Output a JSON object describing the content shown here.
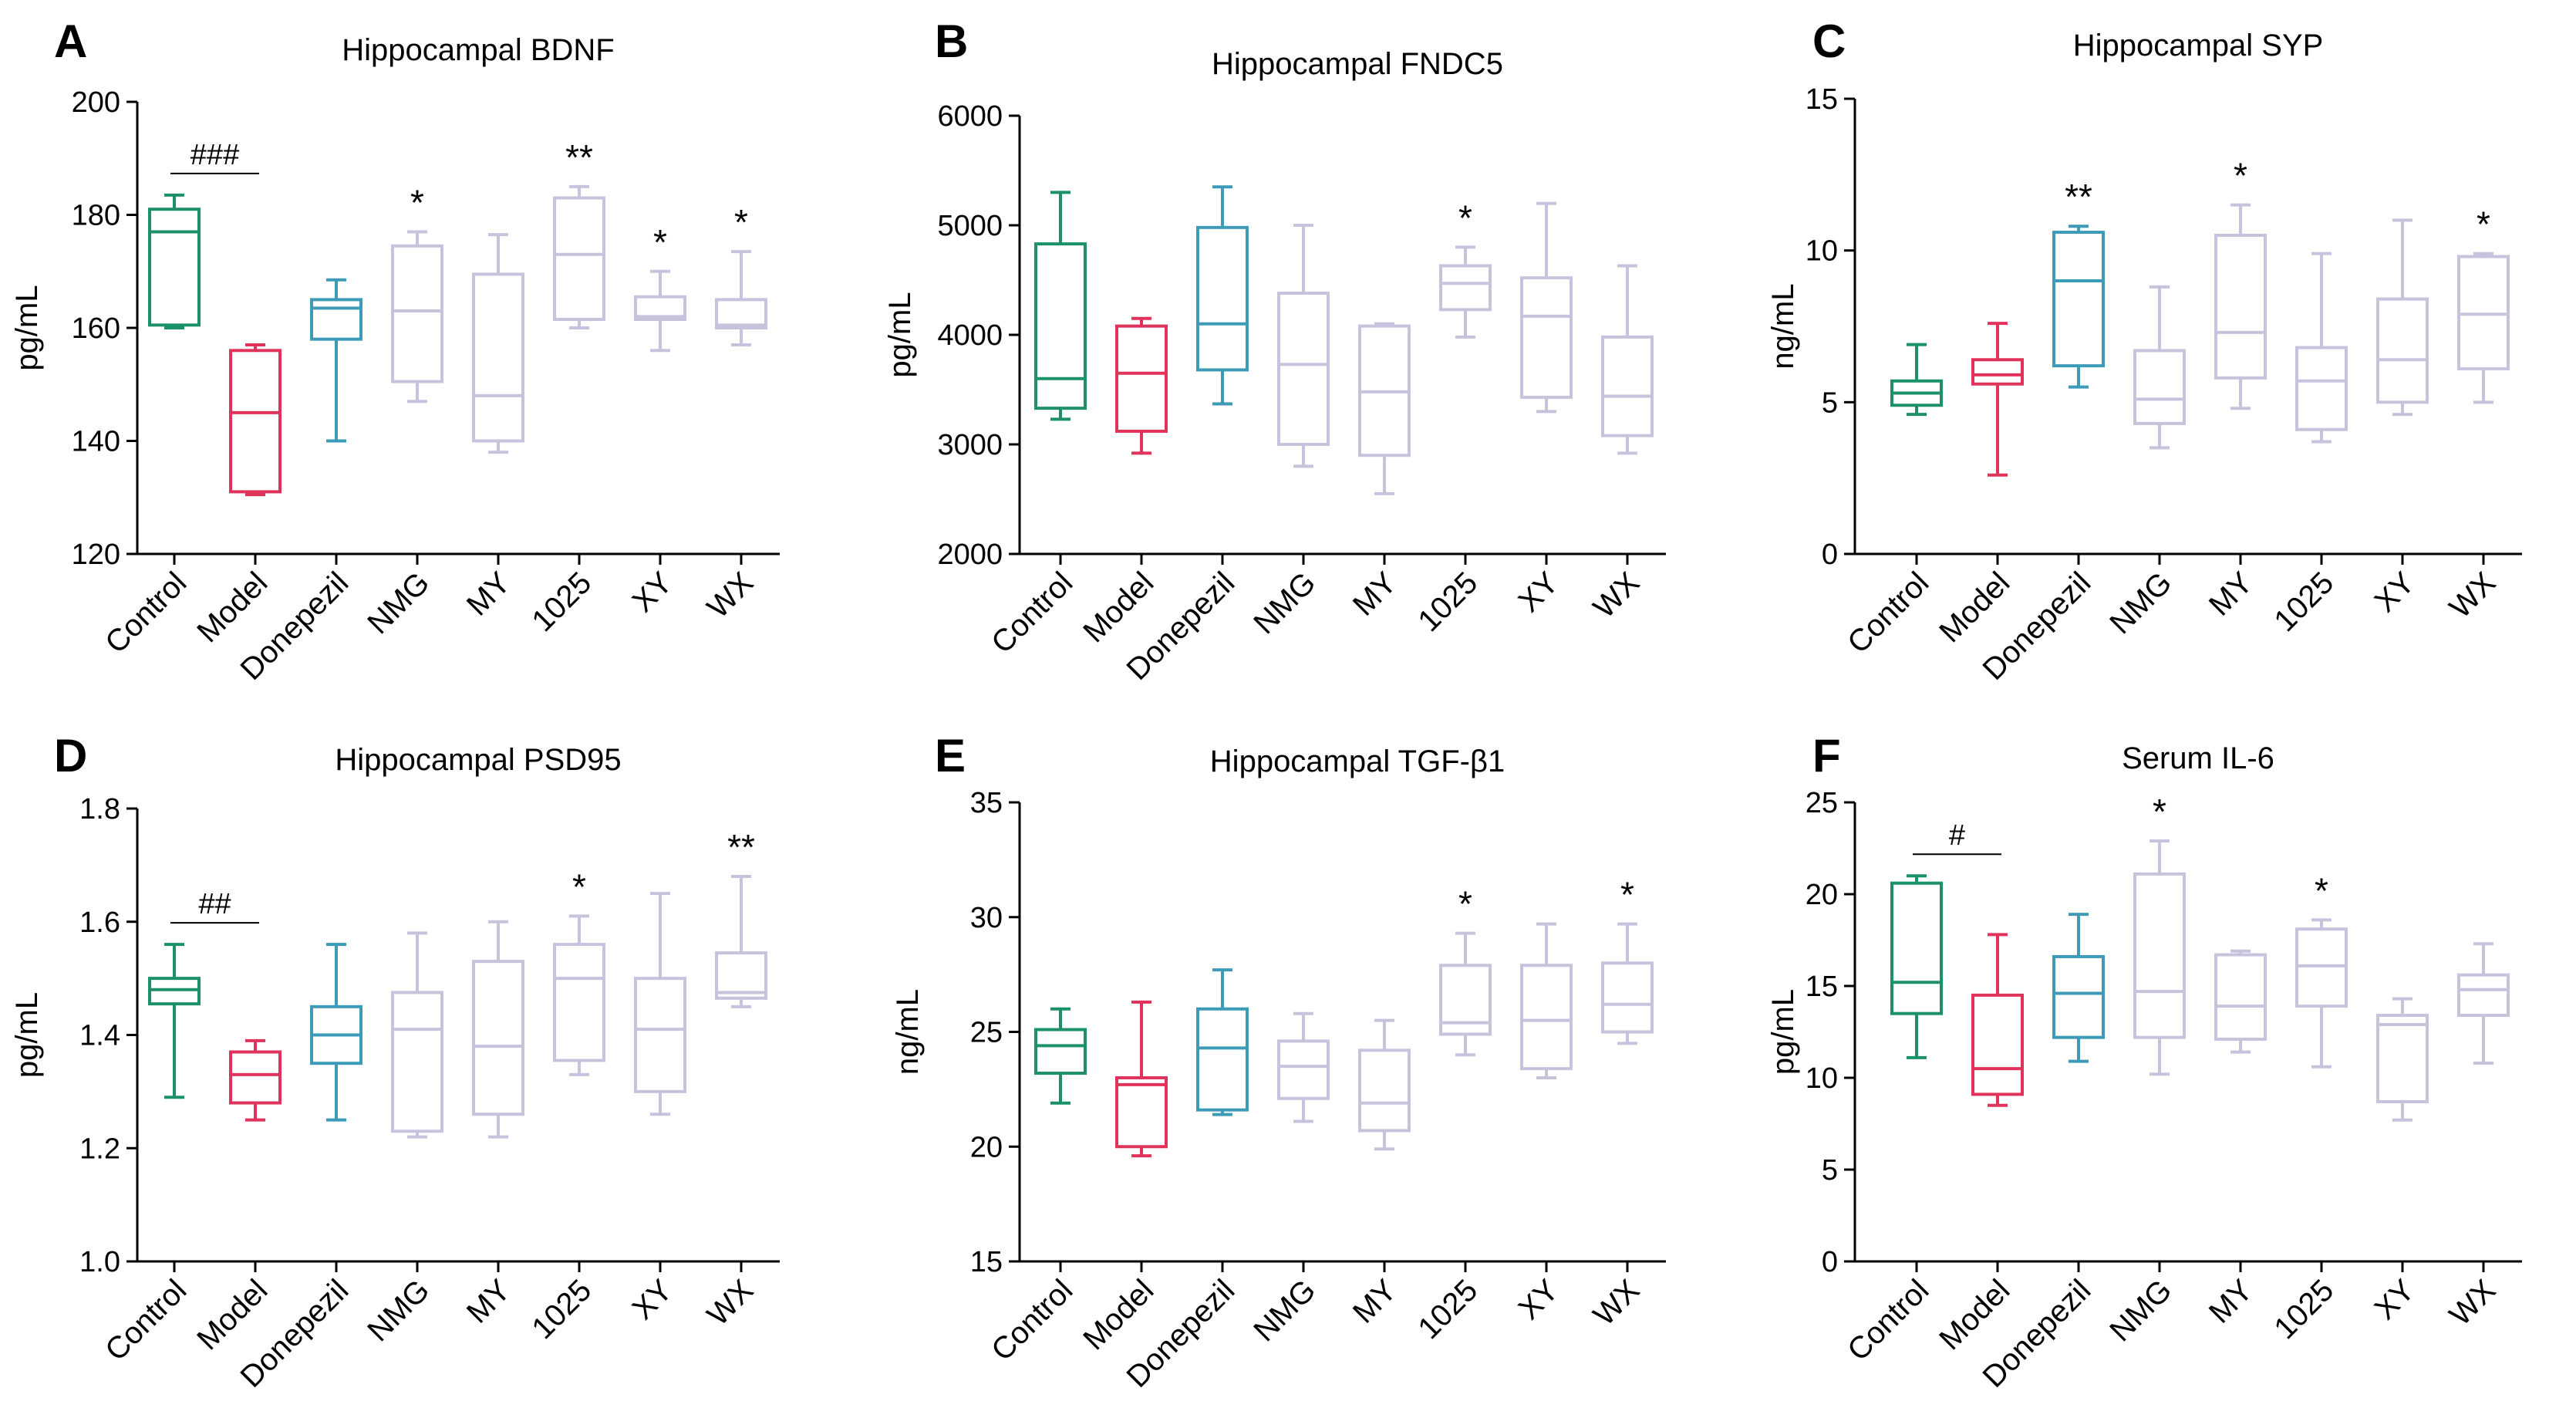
{
  "figure_colors": {
    "Control": "#1a9168",
    "Model": "#e0335c",
    "Donepezil": "#3d9bb8",
    "others": "#c8c2dd"
  },
  "chart_data": [
    {
      "type": "box",
      "panel": "A",
      "title": "Hippocampal BDNF",
      "ylabel": "pg/mL",
      "ylim": [
        120,
        200
      ],
      "yticks": [
        "120",
        "140",
        "160",
        "180",
        "200"
      ],
      "categories": [
        "Control",
        "Model",
        "Donepezil",
        "NMG",
        "MY",
        "1025",
        "XY",
        "WX"
      ],
      "boxes": [
        {
          "min": 160,
          "q1": 160.5,
          "median": 177,
          "q3": 181,
          "max": 183.5
        },
        {
          "min": 130.5,
          "q1": 131,
          "median": 145,
          "q3": 156,
          "max": 157
        },
        {
          "min": 140,
          "q1": 158,
          "median": 163.5,
          "q3": 165,
          "max": 168.5
        },
        {
          "min": 147,
          "q1": 150.5,
          "median": 163,
          "q3": 174.5,
          "max": 177
        },
        {
          "min": 138,
          "q1": 140,
          "median": 148,
          "q3": 169.5,
          "max": 176.5
        },
        {
          "min": 160,
          "q1": 161.5,
          "median": 173,
          "q3": 183,
          "max": 185
        },
        {
          "min": 156,
          "q1": 161.5,
          "median": 162,
          "q3": 165.5,
          "max": 170
        },
        {
          "min": 157,
          "q1": 160,
          "median": 160.5,
          "q3": 165,
          "max": 173.5
        }
      ],
      "significance": {
        "NMG": "*",
        "1025": "**",
        "XY": "*",
        "WX": "*"
      },
      "hash_marks": {
        "label": "###",
        "from": "Control",
        "to": "Model"
      }
    },
    {
      "type": "box",
      "panel": "B",
      "title": "Hippocampal FNDC5",
      "ylabel": "pg/mL",
      "ylim": [
        2000,
        6000
      ],
      "yticks": [
        "2000",
        "3000",
        "4000",
        "5000",
        "6000"
      ],
      "categories": [
        "Control",
        "Model",
        "Donepezil",
        "NMG",
        "MY",
        "1025",
        "XY",
        "WX"
      ],
      "boxes": [
        {
          "min": 3230,
          "q1": 3330,
          "median": 3600,
          "q3": 4830,
          "max": 5300
        },
        {
          "min": 2920,
          "q1": 3120,
          "median": 3650,
          "q3": 4080,
          "max": 4150
        },
        {
          "min": 3370,
          "q1": 3680,
          "median": 4100,
          "q3": 4980,
          "max": 5350
        },
        {
          "min": 2800,
          "q1": 3000,
          "median": 3730,
          "q3": 4380,
          "max": 5000
        },
        {
          "min": 2550,
          "q1": 2900,
          "median": 3480,
          "q3": 4080,
          "max": 4100
        },
        {
          "min": 3980,
          "q1": 4230,
          "median": 4470,
          "q3": 4630,
          "max": 4800
        },
        {
          "min": 3300,
          "q1": 3430,
          "median": 4170,
          "q3": 4520,
          "max": 5200
        },
        {
          "min": 2920,
          "q1": 3080,
          "median": 3440,
          "q3": 3980,
          "max": 4630
        }
      ],
      "significance": {
        "1025": "*"
      }
    },
    {
      "type": "box",
      "panel": "C",
      "title": "Hippocampal SYP",
      "ylabel": "ng/mL",
      "ylim": [
        0,
        15
      ],
      "yticks": [
        "0",
        "5",
        "10",
        "15"
      ],
      "categories": [
        "Control",
        "Model",
        "Donepezil",
        "NMG",
        "MY",
        "1025",
        "XY",
        "WX"
      ],
      "boxes": [
        {
          "min": 4.6,
          "q1": 4.9,
          "median": 5.3,
          "q3": 5.7,
          "max": 6.9
        },
        {
          "min": 2.6,
          "q1": 5.6,
          "median": 5.9,
          "q3": 6.4,
          "max": 7.6
        },
        {
          "min": 5.5,
          "q1": 6.2,
          "median": 9.0,
          "q3": 10.6,
          "max": 10.8
        },
        {
          "min": 3.5,
          "q1": 4.3,
          "median": 5.1,
          "q3": 6.7,
          "max": 8.8
        },
        {
          "min": 4.8,
          "q1": 5.8,
          "median": 7.3,
          "q3": 10.5,
          "max": 11.5
        },
        {
          "min": 3.7,
          "q1": 4.1,
          "median": 5.7,
          "q3": 6.8,
          "max": 9.9
        },
        {
          "min": 4.6,
          "q1": 5.0,
          "median": 6.4,
          "q3": 8.4,
          "max": 11.0
        },
        {
          "min": 5.0,
          "q1": 6.1,
          "median": 7.9,
          "q3": 9.8,
          "max": 9.9
        }
      ],
      "significance": {
        "Donepezil": "**",
        "MY": "*",
        "WX": "*"
      }
    },
    {
      "type": "box",
      "panel": "D",
      "title": "Hippocampal PSD95",
      "ylabel": "pg/mL",
      "ylim": [
        1.0,
        1.8
      ],
      "yticks": [
        "1.0",
        "1.2",
        "1.4",
        "1.6",
        "1.8"
      ],
      "categories": [
        "Control",
        "Model",
        "Donepezil",
        "NMG",
        "MY",
        "1025",
        "XY",
        "WX"
      ],
      "boxes": [
        {
          "min": 1.29,
          "q1": 1.455,
          "median": 1.48,
          "q3": 1.5,
          "max": 1.56
        },
        {
          "min": 1.25,
          "q1": 1.28,
          "median": 1.33,
          "q3": 1.37,
          "max": 1.39
        },
        {
          "min": 1.25,
          "q1": 1.35,
          "median": 1.4,
          "q3": 1.45,
          "max": 1.56
        },
        {
          "min": 1.22,
          "q1": 1.23,
          "median": 1.41,
          "q3": 1.475,
          "max": 1.58
        },
        {
          "min": 1.22,
          "q1": 1.26,
          "median": 1.38,
          "q3": 1.53,
          "max": 1.6
        },
        {
          "min": 1.33,
          "q1": 1.355,
          "median": 1.5,
          "q3": 1.56,
          "max": 1.61
        },
        {
          "min": 1.26,
          "q1": 1.3,
          "median": 1.41,
          "q3": 1.5,
          "max": 1.65
        },
        {
          "min": 1.45,
          "q1": 1.465,
          "median": 1.475,
          "q3": 1.545,
          "max": 1.68
        }
      ],
      "significance": {
        "1025": "*",
        "WX": "**"
      },
      "hash_marks": {
        "label": "##",
        "from": "Control",
        "to": "Model"
      }
    },
    {
      "type": "box",
      "panel": "E",
      "title": "Hippocampal TGF-β1",
      "ylabel": "ng/mL",
      "ylim": [
        15,
        35
      ],
      "yticks": [
        "15",
        "20",
        "25",
        "30",
        "35"
      ],
      "categories": [
        "Control",
        "Model",
        "Donepezil",
        "NMG",
        "MY",
        "1025",
        "XY",
        "WX"
      ],
      "boxes": [
        {
          "min": 21.9,
          "q1": 23.2,
          "median": 24.4,
          "q3": 25.1,
          "max": 26.0
        },
        {
          "min": 19.6,
          "q1": 20.0,
          "median": 22.7,
          "q3": 23.0,
          "max": 26.3
        },
        {
          "min": 21.4,
          "q1": 21.6,
          "median": 24.3,
          "q3": 26.0,
          "max": 27.7
        },
        {
          "min": 21.1,
          "q1": 22.1,
          "median": 23.5,
          "q3": 24.6,
          "max": 25.8
        },
        {
          "min": 19.9,
          "q1": 20.7,
          "median": 21.9,
          "q3": 24.2,
          "max": 25.5
        },
        {
          "min": 24.0,
          "q1": 24.9,
          "median": 25.4,
          "q3": 27.9,
          "max": 29.3
        },
        {
          "min": 23.0,
          "q1": 23.4,
          "median": 25.5,
          "q3": 27.9,
          "max": 29.7
        },
        {
          "min": 24.5,
          "q1": 25.0,
          "median": 26.2,
          "q3": 28.0,
          "max": 29.7
        }
      ],
      "significance": {
        "1025": "*",
        "WX": "*"
      }
    },
    {
      "type": "box",
      "panel": "F",
      "title": "Serum IL-6",
      "ylabel": "pg/mL",
      "ylim": [
        0,
        25
      ],
      "yticks": [
        "0",
        "5",
        "10",
        "15",
        "20",
        "25"
      ],
      "categories": [
        "Control",
        "Model",
        "Donepezil",
        "NMG",
        "MY",
        "1025",
        "XY",
        "WX"
      ],
      "boxes": [
        {
          "min": 11.1,
          "q1": 13.5,
          "median": 15.2,
          "q3": 20.6,
          "max": 21.0
        },
        {
          "min": 8.5,
          "q1": 9.1,
          "median": 10.5,
          "q3": 14.5,
          "max": 17.8
        },
        {
          "min": 10.9,
          "q1": 12.2,
          "median": 14.6,
          "q3": 16.6,
          "max": 18.9
        },
        {
          "min": 10.2,
          "q1": 12.2,
          "median": 14.7,
          "q3": 21.1,
          "max": 22.9
        },
        {
          "min": 11.4,
          "q1": 12.1,
          "median": 13.9,
          "q3": 16.7,
          "max": 16.9
        },
        {
          "min": 10.6,
          "q1": 13.9,
          "median": 16.1,
          "q3": 18.1,
          "max": 18.6
        },
        {
          "min": 7.7,
          "q1": 8.7,
          "median": 12.9,
          "q3": 13.4,
          "max": 14.3
        },
        {
          "min": 10.8,
          "q1": 13.4,
          "median": 14.8,
          "q3": 15.6,
          "max": 17.3
        }
      ],
      "significance": {
        "1025": "*",
        "NMG": "*"
      },
      "hash_marks": {
        "label": "#",
        "from": "Control",
        "to": "Model"
      }
    }
  ]
}
